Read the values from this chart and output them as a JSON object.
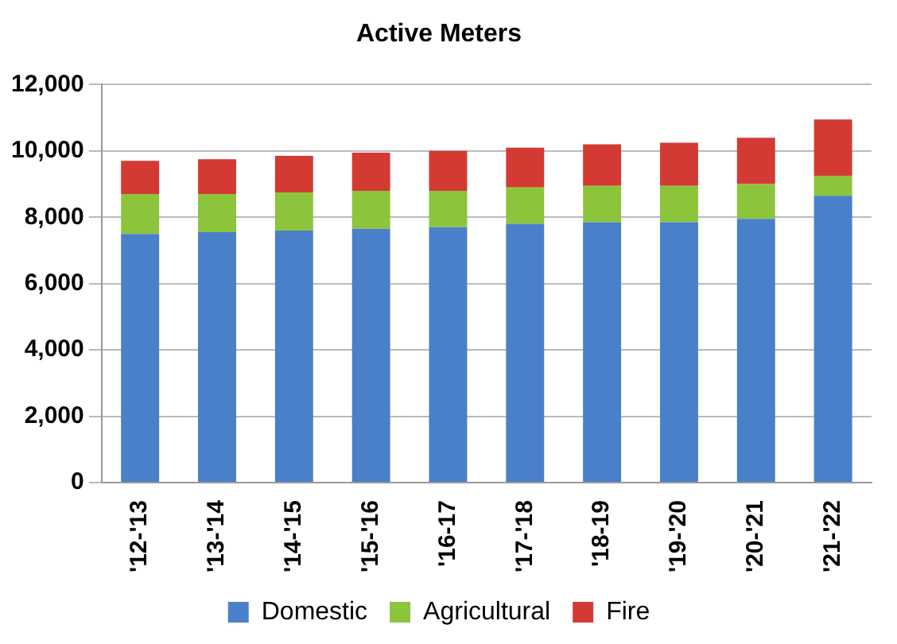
{
  "chart_data": {
    "type": "bar",
    "title": "Active Meters",
    "stacked": true,
    "categories": [
      "'12-'13",
      "'13-'14",
      "'14-'15",
      "'15-'16",
      "'16-17",
      "'17-'18",
      "'18-19",
      "'19-'20",
      "'20-'21",
      "'21-'22"
    ],
    "series": [
      {
        "name": "Domestic",
        "color": "#4a7fc9",
        "values": [
          7500,
          7550,
          7600,
          7650,
          7700,
          7800,
          7850,
          7850,
          7950,
          8650
        ]
      },
      {
        "name": "Agricultural",
        "color": "#8cc43c",
        "values": [
          1200,
          1150,
          1150,
          1150,
          1100,
          1100,
          1100,
          1100,
          1050,
          600
        ]
      },
      {
        "name": "Fire",
        "color": "#d43a34",
        "values": [
          1000,
          1050,
          1100,
          1150,
          1200,
          1200,
          1250,
          1300,
          1400,
          1700
        ]
      }
    ],
    "ylim": [
      0,
      12000
    ],
    "yticks": [
      0,
      {
        "value": 2000,
        "label": "2,000"
      },
      {
        "value": 4000,
        "label": "4,000"
      },
      {
        "value": 6000,
        "label": "6,000"
      },
      {
        "value": 8000,
        "label": "8,000"
      },
      {
        "value": 10000,
        "label": "10,000"
      },
      {
        "value": 12000,
        "label": "12,000"
      }
    ],
    "grid": "y",
    "legend": "bottom"
  }
}
